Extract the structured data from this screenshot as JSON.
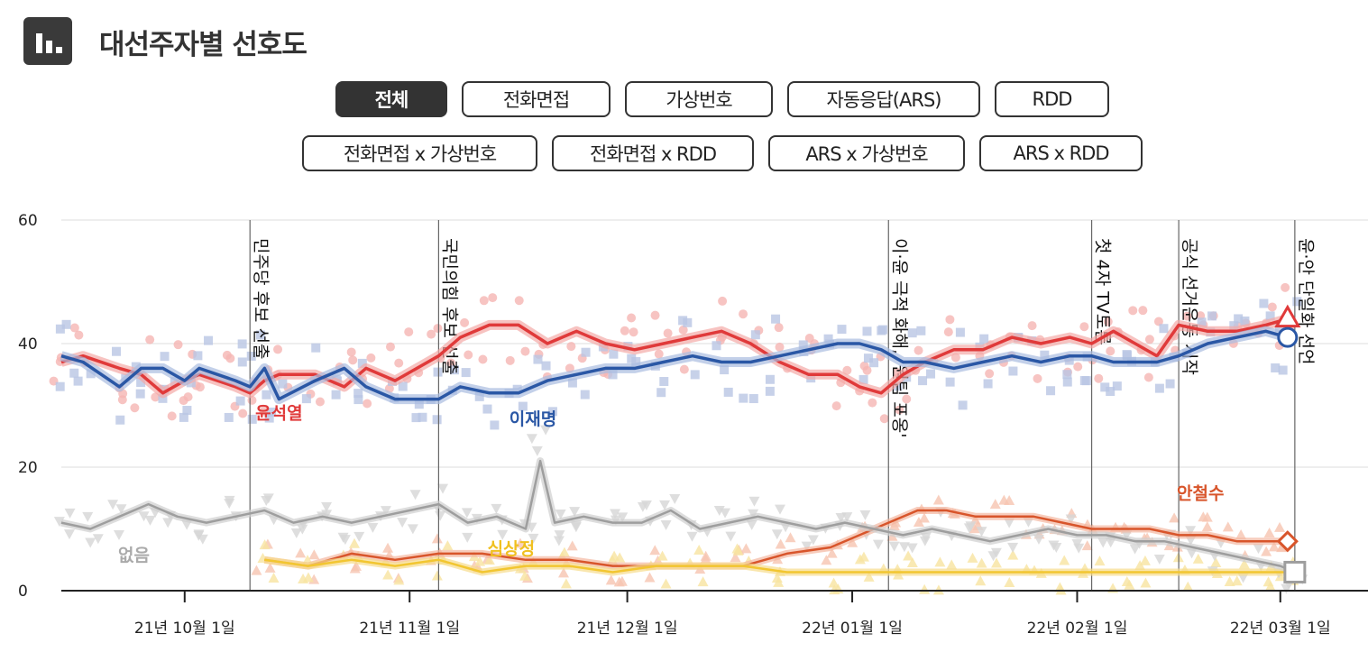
{
  "header": {
    "title": "대선주자별 선호도",
    "icon": "bar-chart-icon"
  },
  "tabs": [
    {
      "label": "전체",
      "active": true
    },
    {
      "label": "전화면접",
      "active": false
    },
    {
      "label": "가상번호",
      "active": false
    },
    {
      "label": "자동응답(ARS)",
      "active": false
    },
    {
      "label": "RDD",
      "active": false
    },
    {
      "label": "전화면접 x 가상번호",
      "active": false
    },
    {
      "label": "전화면접 x RDD",
      "active": false
    },
    {
      "label": "ARS x 가상번호",
      "active": false
    },
    {
      "label": "ARS x RDD",
      "active": false
    }
  ],
  "chart_data": {
    "type": "line",
    "x_ticks": [
      "21년 10월 1일",
      "21년 11월 1일",
      "21년 12월 1일",
      "22년 01월 1일",
      "22년 02월 1일",
      "22년 03월 1일"
    ],
    "y_ticks": [
      "0",
      "20",
      "40",
      "60"
    ],
    "ylim": [
      0,
      60
    ],
    "xlim": [
      "2021-09-14",
      "2022-03-06"
    ],
    "grid": true,
    "colors": {
      "윤석열": "#e03a3a",
      "이재명": "#2a57a5",
      "안철수": "#d8552b",
      "심상정": "#f2c631",
      "없음": "#9e9e9e"
    },
    "events": [
      {
        "date": "2021-10-10",
        "label": "민주당 후보 선출"
      },
      {
        "date": "2021-11-05",
        "label": "국민의힘 후보 선출"
      },
      {
        "date": "2022-01-06",
        "label": "이·윤 극적 화해, '원팀 포옹'"
      },
      {
        "date": "2022-02-03",
        "label": "첫 4자 TV토론"
      },
      {
        "date": "2022-02-15",
        "label": "공식 선거운동 시작"
      },
      {
        "date": "2022-03-03",
        "label": "윤·안 단일화 선언"
      }
    ],
    "series": [
      {
        "name": "윤석열",
        "label_date": "2021-10-14",
        "label_value": 29,
        "x": [
          "2021-09-14",
          "2021-09-17",
          "2021-09-22",
          "2021-09-25",
          "2021-09-28",
          "2021-10-01",
          "2021-10-03",
          "2021-10-08",
          "2021-10-10",
          "2021-10-12",
          "2021-10-14",
          "2021-10-19",
          "2021-10-23",
          "2021-10-26",
          "2021-10-30",
          "2021-11-02",
          "2021-11-05",
          "2021-11-08",
          "2021-11-12",
          "2021-11-16",
          "2021-11-20",
          "2021-11-24",
          "2021-11-28",
          "2021-12-02",
          "2021-12-06",
          "2021-12-10",
          "2021-12-14",
          "2021-12-18",
          "2021-12-22",
          "2021-12-26",
          "2021-12-30",
          "2022-01-02",
          "2022-01-05",
          "2022-01-08",
          "2022-01-11",
          "2022-01-15",
          "2022-01-19",
          "2022-01-23",
          "2022-01-27",
          "2022-01-31",
          "2022-02-03",
          "2022-02-06",
          "2022-02-09",
          "2022-02-12",
          "2022-02-15",
          "2022-02-19",
          "2022-02-23",
          "2022-02-27",
          "2022-03-02"
        ],
        "values": [
          37,
          38,
          36,
          35,
          32,
          34,
          35,
          33,
          32,
          34,
          35,
          35,
          33,
          36,
          34,
          36,
          38,
          41,
          43,
          43,
          40,
          42,
          40,
          39,
          40,
          41,
          42,
          40,
          37,
          35,
          35,
          33,
          32,
          35,
          37,
          39,
          39,
          41,
          40,
          41,
          40,
          42,
          40,
          38,
          43,
          42,
          42,
          43,
          44
        ]
      },
      {
        "name": "이재명",
        "label_date": "2021-11-18",
        "label_value": 28,
        "x": [
          "2021-09-14",
          "2021-09-17",
          "2021-09-22",
          "2021-09-25",
          "2021-09-28",
          "2021-10-01",
          "2021-10-03",
          "2021-10-08",
          "2021-10-10",
          "2021-10-12",
          "2021-10-14",
          "2021-10-19",
          "2021-10-23",
          "2021-10-26",
          "2021-10-30",
          "2021-11-02",
          "2021-11-05",
          "2021-11-08",
          "2021-11-12",
          "2021-11-16",
          "2021-11-20",
          "2021-11-24",
          "2021-11-28",
          "2021-12-02",
          "2021-12-06",
          "2021-12-10",
          "2021-12-14",
          "2021-12-18",
          "2021-12-22",
          "2021-12-26",
          "2021-12-30",
          "2022-01-02",
          "2022-01-05",
          "2022-01-08",
          "2022-01-11",
          "2022-01-15",
          "2022-01-19",
          "2022-01-23",
          "2022-01-27",
          "2022-01-31",
          "2022-02-03",
          "2022-02-06",
          "2022-02-09",
          "2022-02-12",
          "2022-02-15",
          "2022-02-19",
          "2022-02-23",
          "2022-02-27",
          "2022-03-02"
        ],
        "values": [
          38,
          37,
          33,
          36,
          36,
          34,
          36,
          34,
          33,
          36,
          31,
          34,
          36,
          33,
          31,
          31,
          31,
          33,
          32,
          32,
          34,
          35,
          36,
          36,
          37,
          38,
          37,
          37,
          38,
          39,
          40,
          40,
          39,
          37,
          37,
          36,
          37,
          38,
          37,
          38,
          38,
          37,
          37,
          37,
          38,
          40,
          41,
          42,
          41
        ]
      },
      {
        "name": "안철수",
        "label_date": "2022-02-18",
        "label_value": 16,
        "x": [
          "2021-10-12",
          "2021-10-18",
          "2021-10-24",
          "2021-10-30",
          "2021-11-05",
          "2021-11-11",
          "2021-11-17",
          "2021-11-23",
          "2021-11-29",
          "2021-12-05",
          "2021-12-11",
          "2021-12-17",
          "2021-12-23",
          "2021-12-29",
          "2022-01-02",
          "2022-01-06",
          "2022-01-10",
          "2022-01-14",
          "2022-01-18",
          "2022-01-22",
          "2022-01-26",
          "2022-01-30",
          "2022-02-03",
          "2022-02-07",
          "2022-02-11",
          "2022-02-15",
          "2022-02-19",
          "2022-02-23",
          "2022-02-27",
          "2022-03-02"
        ],
        "values": [
          5,
          4,
          6,
          5,
          6,
          6,
          5,
          5,
          4,
          4,
          4,
          4,
          6,
          7,
          9,
          11,
          13,
          13,
          12,
          12,
          12,
          11,
          10,
          10,
          10,
          9,
          9,
          8,
          8,
          8
        ]
      },
      {
        "name": "심상정",
        "label_date": "2021-11-15",
        "label_value": 7,
        "x": [
          "2021-10-12",
          "2021-10-18",
          "2021-10-24",
          "2021-10-30",
          "2021-11-05",
          "2021-11-11",
          "2021-11-17",
          "2021-11-23",
          "2021-11-29",
          "2021-12-05",
          "2021-12-11",
          "2021-12-17",
          "2021-12-23",
          "2021-12-29",
          "2022-01-02",
          "2022-01-06",
          "2022-01-10",
          "2022-01-14",
          "2022-01-18",
          "2022-01-22",
          "2022-01-26",
          "2022-01-30",
          "2022-02-03",
          "2022-02-07",
          "2022-02-11",
          "2022-02-15",
          "2022-02-19",
          "2022-02-23",
          "2022-02-27",
          "2022-03-02"
        ],
        "values": [
          5,
          4,
          5,
          4,
          5,
          3,
          4,
          4,
          3,
          4,
          4,
          4,
          3,
          3,
          3,
          3,
          3,
          3,
          3,
          3,
          3,
          3,
          3,
          3,
          3,
          3,
          3,
          3,
          3,
          3
        ]
      },
      {
        "name": "없음",
        "label_date": "2021-09-24",
        "label_value": 6,
        "x": [
          "2021-09-14",
          "2021-09-18",
          "2021-09-22",
          "2021-09-26",
          "2021-09-30",
          "2021-10-04",
          "2021-10-08",
          "2021-10-12",
          "2021-10-16",
          "2021-10-20",
          "2021-10-24",
          "2021-10-28",
          "2021-11-01",
          "2021-11-05",
          "2021-11-09",
          "2021-11-13",
          "2021-11-17",
          "2021-11-19",
          "2021-11-21",
          "2021-11-25",
          "2021-11-29",
          "2021-12-03",
          "2021-12-07",
          "2021-12-11",
          "2021-12-15",
          "2021-12-19",
          "2021-12-23",
          "2021-12-27",
          "2021-12-31",
          "2022-01-04",
          "2022-01-08",
          "2022-01-12",
          "2022-01-16",
          "2022-01-20",
          "2022-01-24",
          "2022-01-28",
          "2022-02-01",
          "2022-02-05",
          "2022-02-09",
          "2022-02-13",
          "2022-02-17",
          "2022-02-21",
          "2022-02-25",
          "2022-03-01",
          "2022-03-03"
        ],
        "values": [
          11,
          10,
          12,
          14,
          12,
          11,
          12,
          13,
          11,
          12,
          11,
          12,
          13,
          14,
          11,
          12,
          10,
          21,
          11,
          12,
          11,
          11,
          13,
          10,
          11,
          12,
          11,
          10,
          11,
          10,
          9,
          10,
          9,
          8,
          9,
          10,
          9,
          9,
          8,
          8,
          7,
          6,
          5,
          4,
          3
        ]
      }
    ]
  }
}
